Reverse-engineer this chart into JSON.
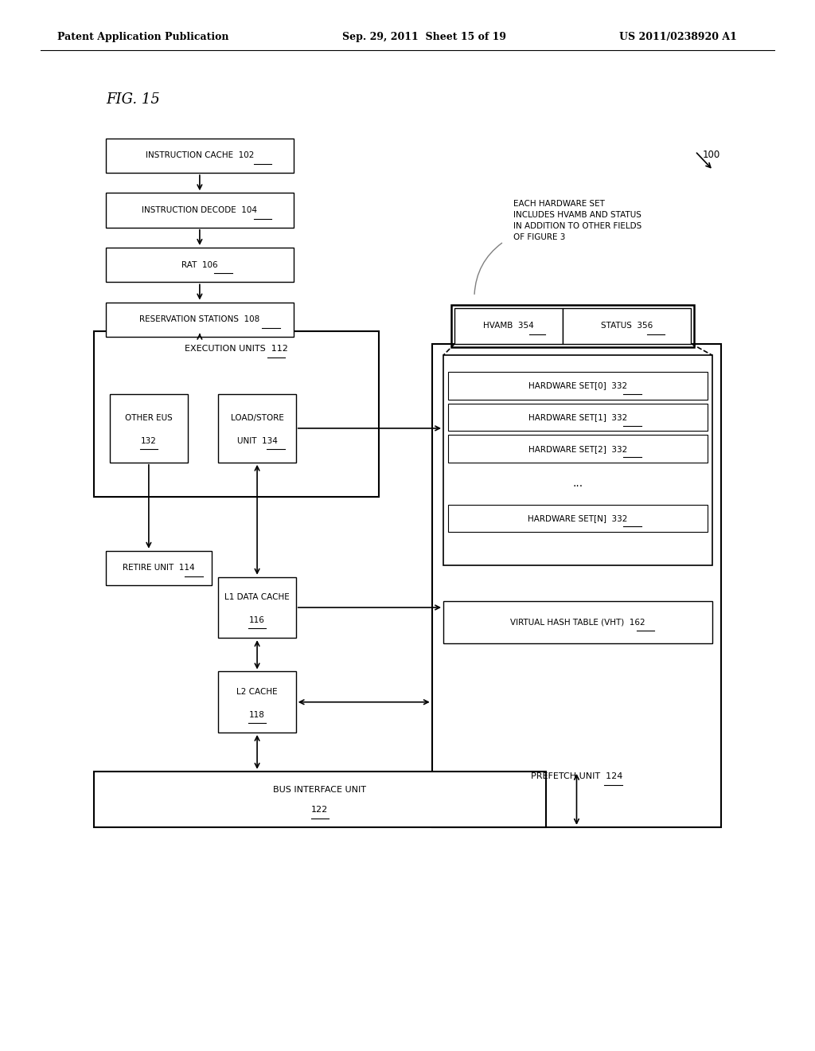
{
  "fig_label": "FIG. 15",
  "header_left": "Patent Application Publication",
  "header_center": "Sep. 29, 2011  Sheet 15 of 19",
  "header_right": "US 2011/0238920 A1",
  "annotation_text": "EACH HARDWARE SET\nINCLUDES HVAMB AND STATUS\nIN ADDITION TO OTHER FIELDS\nOF FIGURE 3",
  "bg_color": "#ffffff"
}
